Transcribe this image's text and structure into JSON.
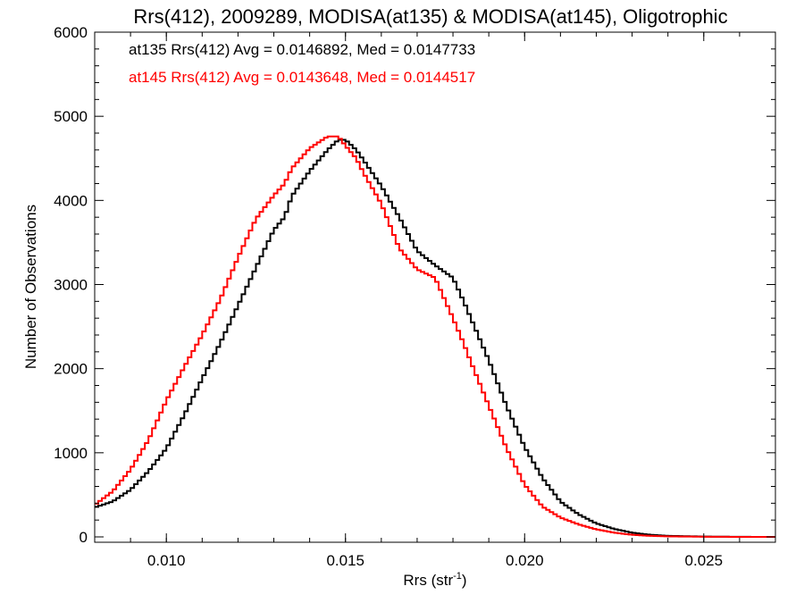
{
  "chart_data": {
    "type": "line",
    "title": "Rrs(412), 2009289, MODISA(at135) & MODISA(at145), Oligotrophic",
    "xlabel_main": "Rrs (str",
    "xlabel_sup": "-1",
    "xlabel_close": ")",
    "ylabel": "Number of Observations",
    "xlim": [
      0.008,
      0.027
    ],
    "ylim": [
      0,
      6000
    ],
    "x_ticks": [
      0.01,
      0.015,
      0.02,
      0.025
    ],
    "x_tick_labels": [
      "0.010",
      "0.015",
      "0.020",
      "0.025"
    ],
    "y_ticks": [
      0,
      1000,
      2000,
      3000,
      4000,
      5000,
      6000
    ],
    "y_tick_labels": [
      "0",
      "1000",
      "2000",
      "3000",
      "4000",
      "5000",
      "6000"
    ],
    "grid": false,
    "legend": [
      {
        "text": "at135 Rrs(412) Avg = 0.0146892, Med = 0.0147733",
        "color": "#000000"
      },
      {
        "text": "at145 Rrs(412) Avg = 0.0143648, Med = 0.0144517",
        "color": "#ff0000"
      }
    ],
    "series": [
      {
        "color": "#000000",
        "points": [
          [
            0.008,
            350
          ],
          [
            0.0085,
            420
          ],
          [
            0.009,
            560
          ],
          [
            0.0095,
            780
          ],
          [
            0.01,
            1050
          ],
          [
            0.0105,
            1450
          ],
          [
            0.011,
            1880
          ],
          [
            0.0115,
            2300
          ],
          [
            0.012,
            2750
          ],
          [
            0.0125,
            3200
          ],
          [
            0.013,
            3650
          ],
          [
            0.0133,
            3800
          ],
          [
            0.0135,
            4050
          ],
          [
            0.014,
            4350
          ],
          [
            0.0145,
            4600
          ],
          [
            0.0148,
            4720
          ],
          [
            0.015,
            4720
          ],
          [
            0.0153,
            4600
          ],
          [
            0.0155,
            4480
          ],
          [
            0.016,
            4170
          ],
          [
            0.0165,
            3800
          ],
          [
            0.017,
            3400
          ],
          [
            0.0175,
            3230
          ],
          [
            0.018,
            3080
          ],
          [
            0.0183,
            2800
          ],
          [
            0.0185,
            2600
          ],
          [
            0.019,
            2100
          ],
          [
            0.0195,
            1550
          ],
          [
            0.02,
            1070
          ],
          [
            0.0205,
            700
          ],
          [
            0.021,
            420
          ],
          [
            0.0215,
            270
          ],
          [
            0.022,
            160
          ],
          [
            0.0225,
            95
          ],
          [
            0.023,
            50
          ],
          [
            0.0235,
            25
          ],
          [
            0.024,
            12
          ],
          [
            0.025,
            4
          ],
          [
            0.026,
            1
          ],
          [
            0.027,
            0
          ]
        ]
      },
      {
        "color": "#ff0000",
        "points": [
          [
            0.008,
            380
          ],
          [
            0.0085,
            540
          ],
          [
            0.009,
            800
          ],
          [
            0.0095,
            1150
          ],
          [
            0.01,
            1620
          ],
          [
            0.0105,
            2020
          ],
          [
            0.011,
            2400
          ],
          [
            0.0115,
            2820
          ],
          [
            0.012,
            3320
          ],
          [
            0.0125,
            3780
          ],
          [
            0.013,
            4060
          ],
          [
            0.0133,
            4200
          ],
          [
            0.0135,
            4380
          ],
          [
            0.014,
            4620
          ],
          [
            0.0145,
            4760
          ],
          [
            0.0148,
            4760
          ],
          [
            0.015,
            4650
          ],
          [
            0.0153,
            4500
          ],
          [
            0.0155,
            4330
          ],
          [
            0.016,
            3960
          ],
          [
            0.0165,
            3430
          ],
          [
            0.017,
            3180
          ],
          [
            0.0175,
            3080
          ],
          [
            0.018,
            2600
          ],
          [
            0.0183,
            2300
          ],
          [
            0.0185,
            2080
          ],
          [
            0.019,
            1560
          ],
          [
            0.0195,
            1050
          ],
          [
            0.02,
            620
          ],
          [
            0.0205,
            360
          ],
          [
            0.021,
            230
          ],
          [
            0.0215,
            150
          ],
          [
            0.022,
            90
          ],
          [
            0.0225,
            50
          ],
          [
            0.023,
            25
          ],
          [
            0.0235,
            12
          ],
          [
            0.024,
            6
          ],
          [
            0.025,
            2
          ],
          [
            0.026,
            0
          ],
          [
            0.027,
            0
          ]
        ]
      }
    ]
  }
}
